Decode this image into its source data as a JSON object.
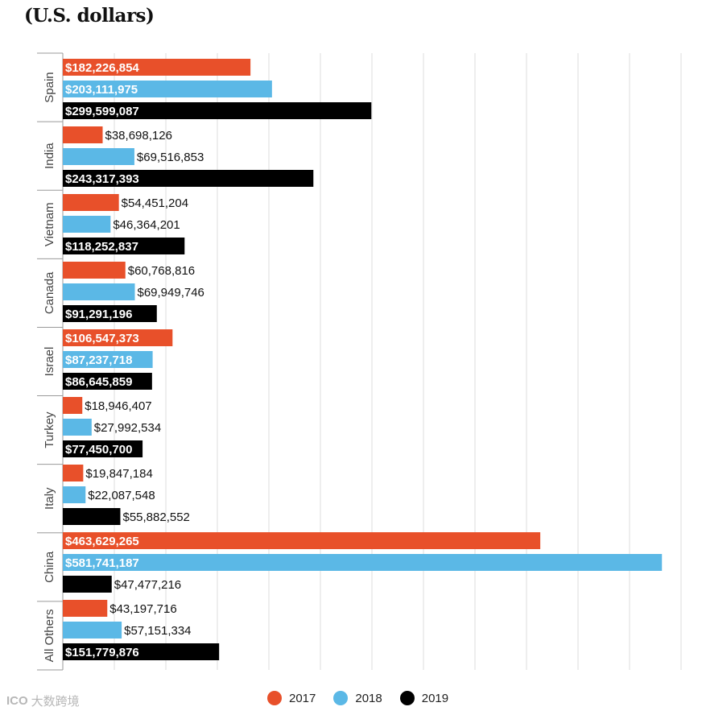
{
  "chart_data": {
    "type": "bar",
    "orientation": "horizontal",
    "title": "(U.S. dollars)",
    "xlabel": "",
    "ylabel": "",
    "xlim": [
      0,
      600000000
    ],
    "grid": true,
    "legend_position": "bottom",
    "categories": [
      "Spain",
      "India",
      "Vietnam",
      "Canada",
      "Israel",
      "Turkey",
      "Italy",
      "China",
      "All Others"
    ],
    "series": [
      {
        "name": "2017",
        "color": "#e8502a",
        "values": [
          182226854,
          38698126,
          54451204,
          60768816,
          106547373,
          18946407,
          19847184,
          463629265,
          43197716
        ],
        "labels": [
          "$182,226,854",
          "$38,698,126",
          "$54,451,204",
          "$60,768,816",
          "$106,547,373",
          "$18,946,407",
          "$19,847,184",
          "$463,629,265",
          "$43,197,716"
        ]
      },
      {
        "name": "2018",
        "color": "#5bb8e6",
        "values": [
          203111975,
          69516853,
          46364201,
          69949746,
          87237718,
          27992534,
          22087548,
          581741187,
          57151334
        ],
        "labels": [
          "$203,111,975",
          "$69,516,853",
          "$46,364,201",
          "$69,949,746",
          "$87,237,718",
          "$27,992,534",
          "$22,087,548",
          "$581,741,187",
          "$57,151,334"
        ]
      },
      {
        "name": "2019",
        "color": "#000000",
        "values": [
          299599087,
          243317393,
          118252837,
          91291196,
          86645859,
          77450700,
          55882552,
          47477216,
          151779876
        ],
        "labels": [
          "$299,599,087",
          "$243,317,393",
          "$118,252,837",
          "$91,291,196",
          "$86,645,859",
          "$77,450,700",
          "$55,882,552",
          "$47,477,216",
          "$151,779,876"
        ]
      }
    ]
  },
  "watermark": {
    "icon": "ICO",
    "text": "大数跨境"
  }
}
